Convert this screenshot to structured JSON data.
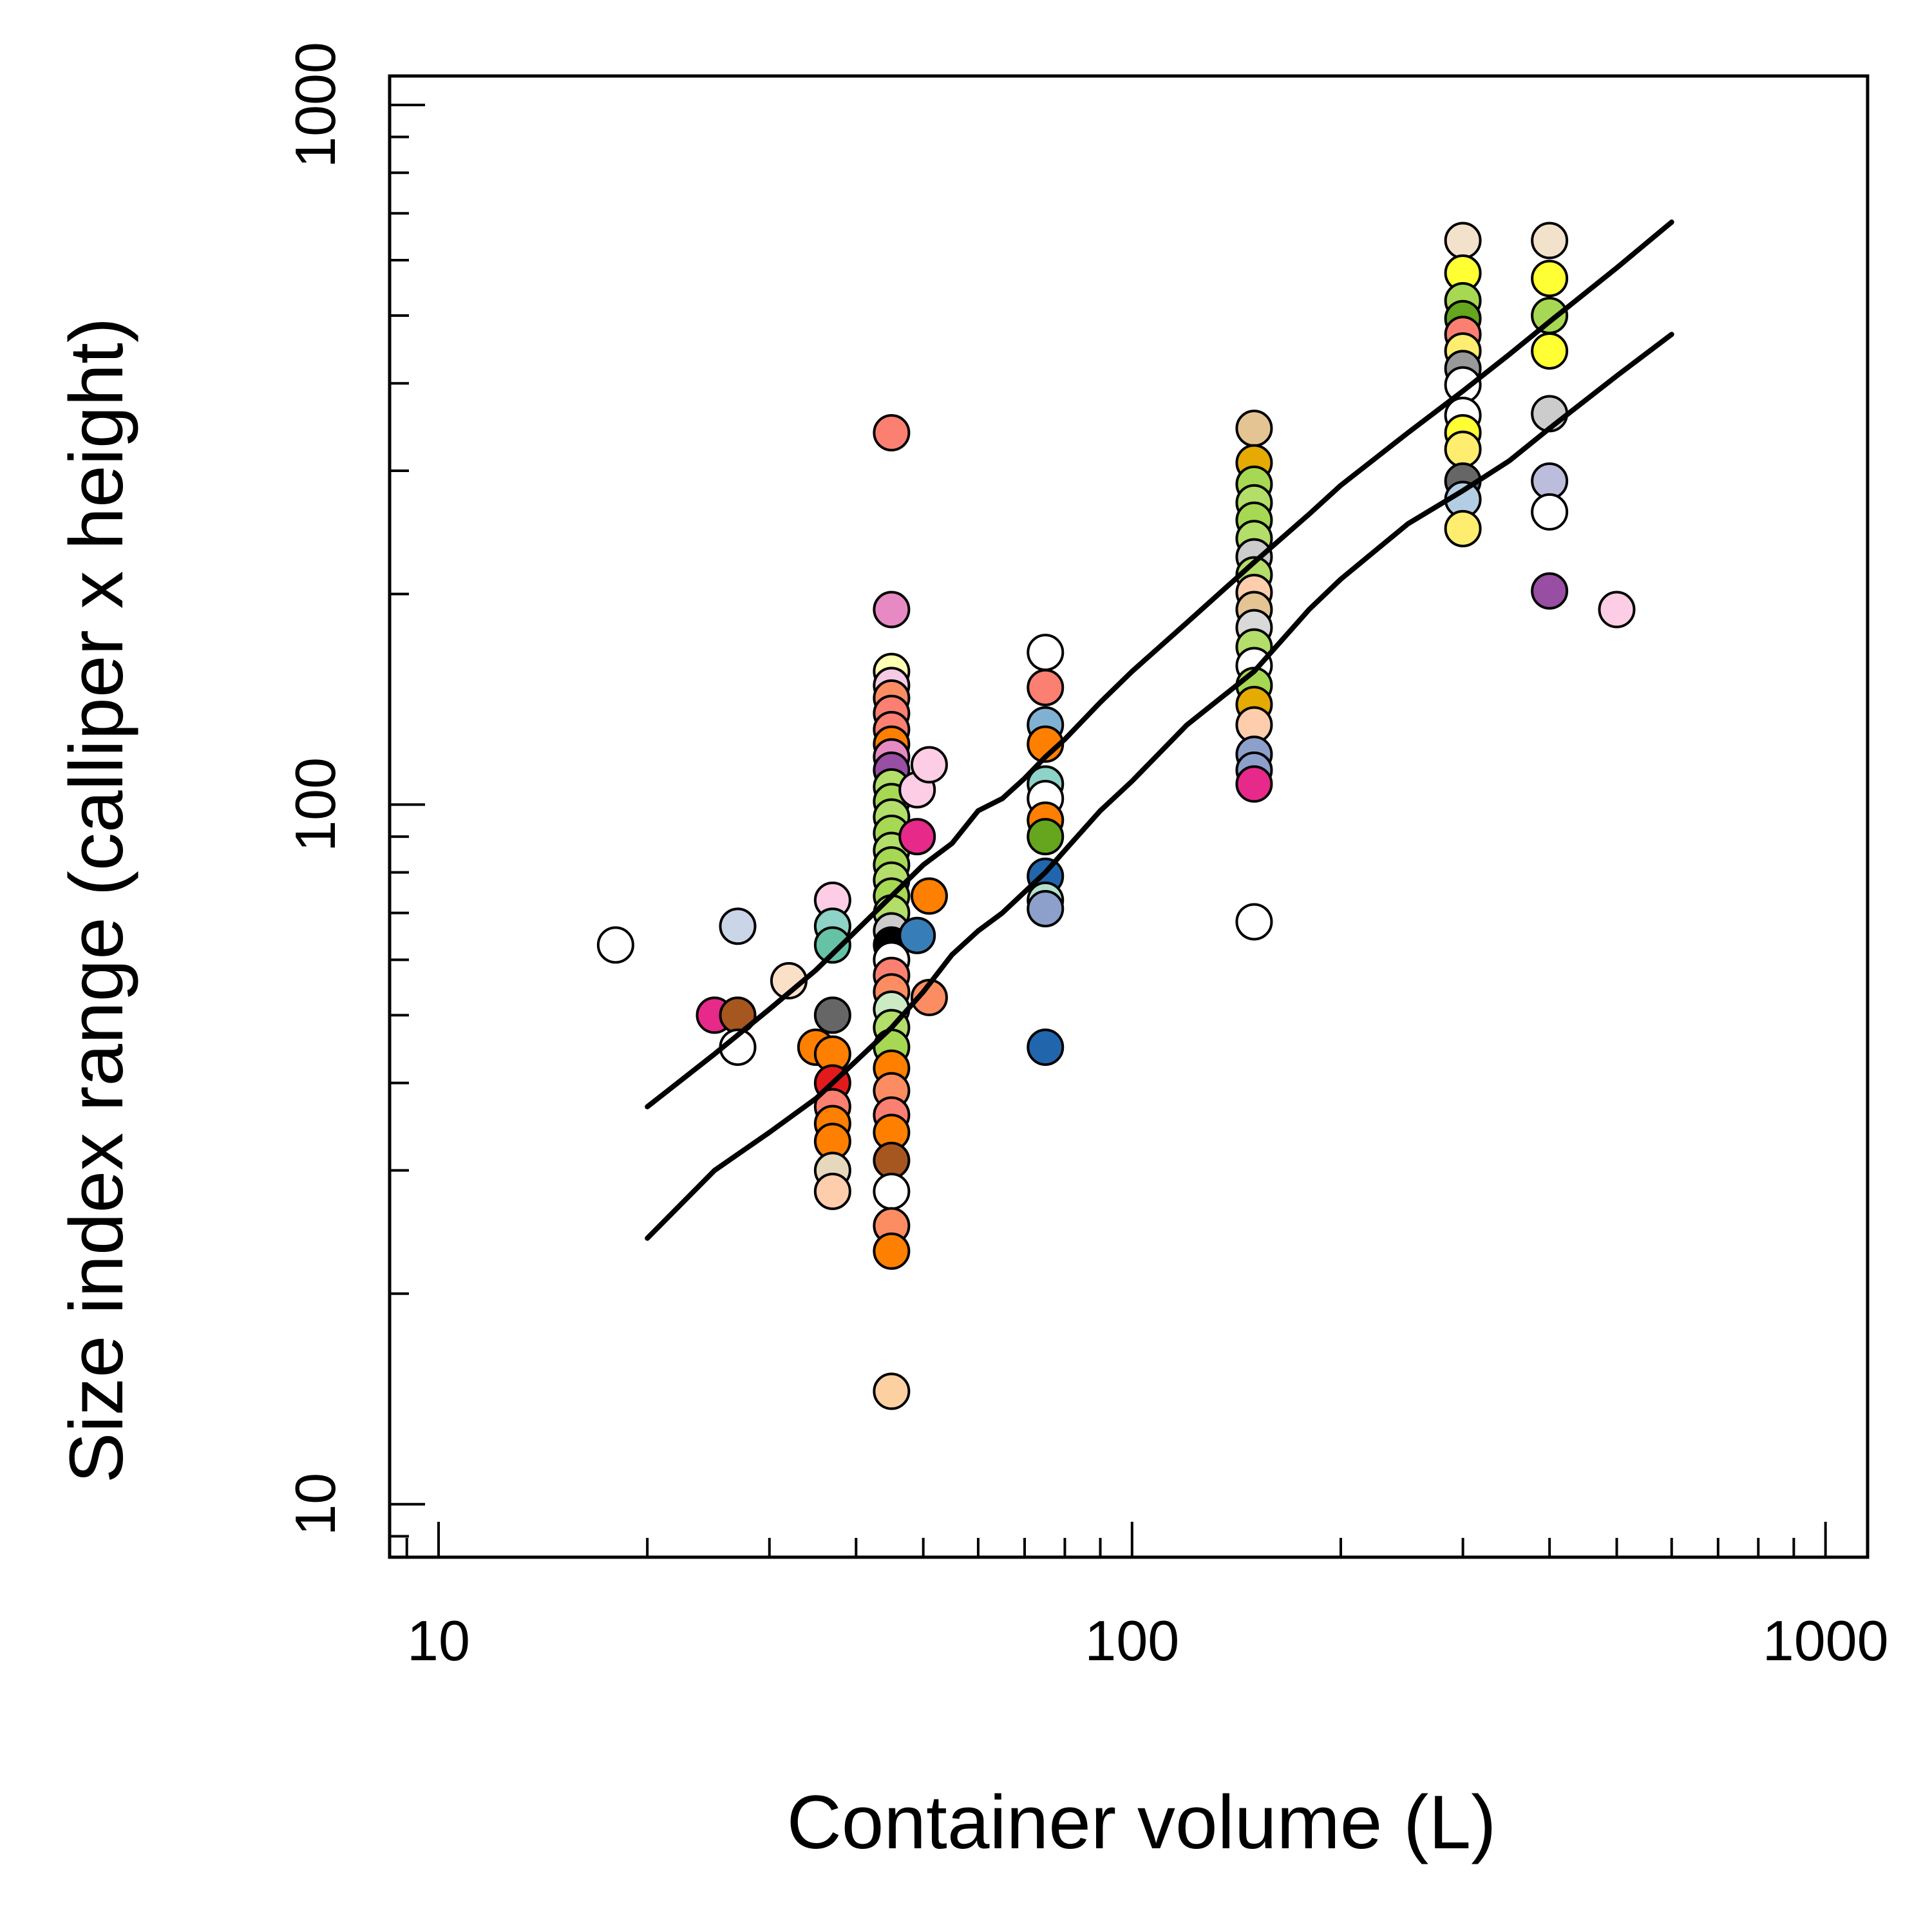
{
  "chart_data": {
    "type": "scatter",
    "title": "",
    "xlabel": "Container volume (L)",
    "ylabel": "Size index range  (calliper x height)",
    "xscale": "log",
    "yscale": "log",
    "xlim": [
      8.5,
      1150
    ],
    "ylim": [
      8.4,
      1100
    ],
    "grid": false,
    "legend": "none",
    "x_ticks": [
      10,
      100,
      1000
    ],
    "x_tick_labels": [
      "10",
      "100",
      "1000"
    ],
    "y_ticks": [
      10,
      100,
      1000
    ],
    "y_tick_labels": [
      "10",
      "100",
      "1000"
    ],
    "marker_edge_color": "#000000",
    "line_color": "#000000",
    "points": [
      {
        "x": 18,
        "y": 63,
        "c": "#ffffff"
      },
      {
        "x": 25,
        "y": 50,
        "c": "#e7298a"
      },
      {
        "x": 27,
        "y": 50,
        "c": "#a6561f"
      },
      {
        "x": 27,
        "y": 45,
        "c": "#ffffff"
      },
      {
        "x": 27,
        "y": 67,
        "c": "#cbd5e8"
      },
      {
        "x": 32,
        "y": 56,
        "c": "#fbe0c8"
      },
      {
        "x": 35,
        "y": 45,
        "c": "#ff7f00"
      },
      {
        "x": 37,
        "y": 73,
        "c": "#fccde5"
      },
      {
        "x": 37,
        "y": 67,
        "c": "#8dd3c7"
      },
      {
        "x": 37,
        "y": 63,
        "c": "#66c2a5"
      },
      {
        "x": 37,
        "y": 50,
        "c": "#666666"
      },
      {
        "x": 37,
        "y": 44,
        "c": "#ff7f00"
      },
      {
        "x": 37,
        "y": 40,
        "c": "#e31a1c"
      },
      {
        "x": 37,
        "y": 37,
        "c": "#fb8072"
      },
      {
        "x": 37,
        "y": 35,
        "c": "#ff7f00"
      },
      {
        "x": 37,
        "y": 33,
        "c": "#ff7f00"
      },
      {
        "x": 37,
        "y": 30,
        "c": "#e5d8bd"
      },
      {
        "x": 37,
        "y": 28,
        "c": "#fdcdac"
      },
      {
        "x": 45,
        "y": 340,
        "c": "#fb8072"
      },
      {
        "x": 45,
        "y": 190,
        "c": "#e78ac3"
      },
      {
        "x": 45,
        "y": 155,
        "c": "#ffffb3"
      },
      {
        "x": 45,
        "y": 148,
        "c": "#f4cae4"
      },
      {
        "x": 45,
        "y": 142,
        "c": "#fc8d62"
      },
      {
        "x": 45,
        "y": 135,
        "c": "#fb8072"
      },
      {
        "x": 45,
        "y": 128,
        "c": "#fb8072"
      },
      {
        "x": 45,
        "y": 122,
        "c": "#ff7f00"
      },
      {
        "x": 45,
        "y": 117,
        "c": "#e78ac3"
      },
      {
        "x": 45,
        "y": 112,
        "c": "#984ea3"
      },
      {
        "x": 45,
        "y": 106,
        "c": "#b3de69"
      },
      {
        "x": 45,
        "y": 101,
        "c": "#a6d854"
      },
      {
        "x": 45,
        "y": 96,
        "c": "#b3de69"
      },
      {
        "x": 45,
        "y": 91,
        "c": "#a6d854"
      },
      {
        "x": 45,
        "y": 86,
        "c": "#b3de69"
      },
      {
        "x": 45,
        "y": 82,
        "c": "#a6d854"
      },
      {
        "x": 45,
        "y": 78,
        "c": "#b3de69"
      },
      {
        "x": 45,
        "y": 74,
        "c": "#a6d854"
      },
      {
        "x": 45,
        "y": 70,
        "c": "#b3de69"
      },
      {
        "x": 45,
        "y": 66,
        "c": "#cccccc"
      },
      {
        "x": 45,
        "y": 63,
        "c": "#000000"
      },
      {
        "x": 45,
        "y": 60,
        "c": "#ffffff"
      },
      {
        "x": 45,
        "y": 57,
        "c": "#fb8072"
      },
      {
        "x": 45,
        "y": 54,
        "c": "#fc8d62"
      },
      {
        "x": 45,
        "y": 51,
        "c": "#ccebc5"
      },
      {
        "x": 45,
        "y": 48,
        "c": "#b3de69"
      },
      {
        "x": 45,
        "y": 45,
        "c": "#a6d854"
      },
      {
        "x": 45,
        "y": 42,
        "c": "#ff7f00"
      },
      {
        "x": 45,
        "y": 39,
        "c": "#fc8d62"
      },
      {
        "x": 45,
        "y": 36,
        "c": "#fb8072"
      },
      {
        "x": 45,
        "y": 34,
        "c": "#ff7f00"
      },
      {
        "x": 45,
        "y": 31,
        "c": "#a6561f"
      },
      {
        "x": 45,
        "y": 28,
        "c": "#ffffff"
      },
      {
        "x": 45,
        "y": 25,
        "c": "#fc8d62"
      },
      {
        "x": 45,
        "y": 23,
        "c": "#ff7f00"
      },
      {
        "x": 45,
        "y": 14.5,
        "c": "#fdd0a2"
      },
      {
        "x": 49,
        "y": 105,
        "c": "#fccde5"
      },
      {
        "x": 49,
        "y": 90,
        "c": "#e7298a"
      },
      {
        "x": 49,
        "y": 65,
        "c": "#377eb8"
      },
      {
        "x": 51,
        "y": 114,
        "c": "#fccde5"
      },
      {
        "x": 51,
        "y": 74,
        "c": "#ff7f00"
      },
      {
        "x": 51,
        "y": 53,
        "c": "#fc8d62"
      },
      {
        "x": 75,
        "y": 165,
        "c": "#ffffff"
      },
      {
        "x": 75,
        "y": 147,
        "c": "#fb8072"
      },
      {
        "x": 75,
        "y": 130,
        "c": "#80b1d3"
      },
      {
        "x": 75,
        "y": 122,
        "c": "#ff7f00"
      },
      {
        "x": 75,
        "y": 107,
        "c": "#8dd3c7"
      },
      {
        "x": 75,
        "y": 102,
        "c": "#ffffff"
      },
      {
        "x": 75,
        "y": 95,
        "c": "#ff7f00"
      },
      {
        "x": 75,
        "y": 90,
        "c": "#66a61e"
      },
      {
        "x": 75,
        "y": 79,
        "c": "#2166ac"
      },
      {
        "x": 75,
        "y": 73,
        "c": "#b3e2cd"
      },
      {
        "x": 75,
        "y": 71,
        "c": "#8da0cb"
      },
      {
        "x": 75,
        "y": 45,
        "c": "#2166ac"
      },
      {
        "x": 150,
        "y": 345,
        "c": "#e5c494"
      },
      {
        "x": 150,
        "y": 308,
        "c": "#e6ab02"
      },
      {
        "x": 150,
        "y": 287,
        "c": "#a6d854"
      },
      {
        "x": 150,
        "y": 270,
        "c": "#b3de69"
      },
      {
        "x": 150,
        "y": 255,
        "c": "#a6d854"
      },
      {
        "x": 150,
        "y": 240,
        "c": "#b3de69"
      },
      {
        "x": 150,
        "y": 226,
        "c": "#cccccc"
      },
      {
        "x": 150,
        "y": 213,
        "c": "#b3de69"
      },
      {
        "x": 150,
        "y": 201,
        "c": "#fdcdac"
      },
      {
        "x": 150,
        "y": 190,
        "c": "#e5c494"
      },
      {
        "x": 150,
        "y": 179,
        "c": "#d9d9d9"
      },
      {
        "x": 150,
        "y": 168,
        "c": "#b3de69"
      },
      {
        "x": 150,
        "y": 158,
        "c": "#ffffff"
      },
      {
        "x": 150,
        "y": 148,
        "c": "#a6d854"
      },
      {
        "x": 150,
        "y": 139,
        "c": "#e6ab02"
      },
      {
        "x": 150,
        "y": 130,
        "c": "#fdcdac"
      },
      {
        "x": 150,
        "y": 118,
        "c": "#8da0cb"
      },
      {
        "x": 150,
        "y": 112,
        "c": "#8da0cb"
      },
      {
        "x": 150,
        "y": 107,
        "c": "#e7298a"
      },
      {
        "x": 150,
        "y": 68,
        "c": "#ffffff"
      },
      {
        "x": 300,
        "y": 640,
        "c": "#f2e2cc"
      },
      {
        "x": 300,
        "y": 575,
        "c": "#ffff33"
      },
      {
        "x": 300,
        "y": 525,
        "c": "#a6d854"
      },
      {
        "x": 300,
        "y": 495,
        "c": "#66a61e"
      },
      {
        "x": 300,
        "y": 470,
        "c": "#fb8072"
      },
      {
        "x": 300,
        "y": 445,
        "c": "#ffed6f"
      },
      {
        "x": 300,
        "y": 420,
        "c": "#999999"
      },
      {
        "x": 300,
        "y": 398,
        "c": "#ffffff"
      },
      {
        "x": 300,
        "y": 360,
        "c": "#ffffff"
      },
      {
        "x": 300,
        "y": 340,
        "c": "#ffff33"
      },
      {
        "x": 300,
        "y": 322,
        "c": "#ffed6f"
      },
      {
        "x": 300,
        "y": 290,
        "c": "#666666"
      },
      {
        "x": 300,
        "y": 273,
        "c": "#b3cde3"
      },
      {
        "x": 300,
        "y": 248,
        "c": "#ffed6f"
      },
      {
        "x": 400,
        "y": 640,
        "c": "#f2e2cc"
      },
      {
        "x": 400,
        "y": 565,
        "c": "#ffff33"
      },
      {
        "x": 400,
        "y": 500,
        "c": "#a6d854"
      },
      {
        "x": 400,
        "y": 445,
        "c": "#ffff33"
      },
      {
        "x": 400,
        "y": 362,
        "c": "#cccccc"
      },
      {
        "x": 400,
        "y": 290,
        "c": "#bcbddc"
      },
      {
        "x": 400,
        "y": 262,
        "c": "#ffffff"
      },
      {
        "x": 400,
        "y": 202,
        "c": "#984ea3"
      },
      {
        "x": 500,
        "y": 190,
        "c": "#fccde5"
      }
    ],
    "lines": [
      {
        "x": [
          20,
          25,
          30,
          35,
          40,
          45,
          50,
          55,
          60,
          65,
          70,
          75,
          80,
          90,
          100,
          120,
          150,
          180,
          200,
          250,
          300,
          350,
          400,
          500,
          600
        ],
        "y": [
          37,
          44,
          51,
          58,
          66,
          74,
          82,
          88,
          98,
          102,
          109,
          117,
          124,
          140,
          155,
          182,
          222,
          260,
          286,
          340,
          390,
          440,
          490,
          585,
          680
        ]
      },
      {
        "x": [
          20,
          25,
          30,
          35,
          40,
          45,
          50,
          55,
          60,
          65,
          70,
          75,
          80,
          90,
          100,
          120,
          150,
          180,
          200,
          250,
          300,
          350,
          400,
          500,
          600
        ],
        "y": [
          24,
          30,
          34,
          38,
          43,
          48,
          54,
          61,
          66,
          70,
          75,
          80,
          86,
          98,
          108,
          130,
          155,
          190,
          210,
          252,
          281,
          310,
          345,
          410,
          470
        ]
      }
    ]
  }
}
